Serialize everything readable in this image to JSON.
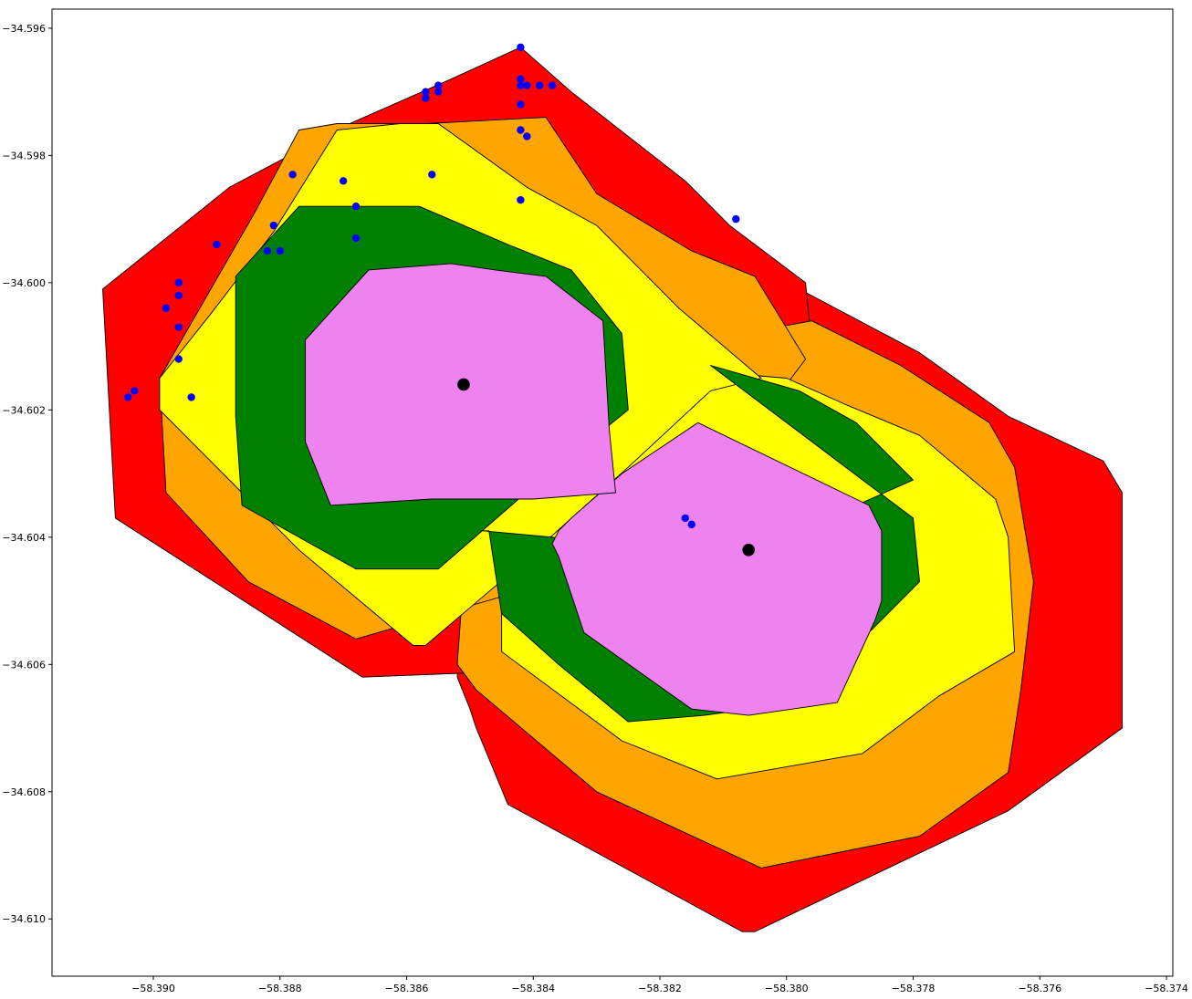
{
  "chart_data": {
    "type": "map",
    "title": "",
    "xlabel": "",
    "ylabel": "",
    "xlim": [
      -58.3916,
      -58.3739
    ],
    "ylim": [
      -34.6109,
      -34.5957
    ],
    "grid": false,
    "legend": null,
    "x_ticks": [
      {
        "value": -58.39,
        "label": "−58.390"
      },
      {
        "value": -58.388,
        "label": "−58.388"
      },
      {
        "value": -58.386,
        "label": "−58.386"
      },
      {
        "value": -58.384,
        "label": "−58.384"
      },
      {
        "value": -58.382,
        "label": "−58.382"
      },
      {
        "value": -58.38,
        "label": "−58.380"
      },
      {
        "value": -58.378,
        "label": "−58.378"
      },
      {
        "value": -58.376,
        "label": "−58.376"
      },
      {
        "value": -58.374,
        "label": "−58.374"
      }
    ],
    "y_ticks": [
      {
        "value": -34.596,
        "label": "−34.596"
      },
      {
        "value": -34.598,
        "label": "−34.598"
      },
      {
        "value": -34.6,
        "label": "−34.600"
      },
      {
        "value": -34.602,
        "label": "−34.602"
      },
      {
        "value": -34.604,
        "label": "−34.604"
      },
      {
        "value": -34.606,
        "label": "−34.606"
      },
      {
        "value": -34.608,
        "label": "−34.608"
      },
      {
        "value": -34.61,
        "label": "−34.610"
      }
    ],
    "colors": {
      "red": "#ff0000",
      "orange": "#ffa500",
      "yellow": "#ffff00",
      "green": "#008000",
      "violet": "#ee82ee",
      "points": "#0000ff",
      "centers": "#000000"
    },
    "polygons": [
      {
        "name": "red-zone-b",
        "color": "red",
        "coords": [
          [
            -58.3809,
            -34.5997
          ],
          [
            -58.3798,
            -34.6001
          ],
          [
            -58.3779,
            -34.6011
          ],
          [
            -58.3765,
            -34.6021
          ],
          [
            -58.375,
            -34.6028
          ],
          [
            -58.3747,
            -34.6033
          ],
          [
            -58.3747,
            -34.607
          ],
          [
            -58.3765,
            -34.6083
          ],
          [
            -58.3805,
            -34.6102
          ],
          [
            -58.3807,
            -34.6102
          ],
          [
            -58.3844,
            -34.6082
          ],
          [
            -58.3849,
            -34.607
          ],
          [
            -58.385,
            -34.6067
          ],
          [
            -58.3852,
            -34.6062
          ],
          [
            -58.3851,
            -34.6042
          ],
          [
            -58.384,
            -34.6014
          ],
          [
            -58.382,
            -34.6001
          ]
        ]
      },
      {
        "name": "red-zone-a",
        "color": "red",
        "coords": [
          [
            -58.3842,
            -34.5963
          ],
          [
            -58.3853,
            -34.5968
          ],
          [
            -58.3869,
            -34.5975
          ],
          [
            -58.3888,
            -34.5985
          ],
          [
            -58.3908,
            -34.6001
          ],
          [
            -58.3906,
            -34.6037
          ],
          [
            -58.3867,
            -34.6062
          ],
          [
            -58.3842,
            -34.6061
          ],
          [
            -58.3829,
            -34.6057
          ],
          [
            -58.38,
            -34.6014
          ],
          [
            -58.3796,
            -34.601
          ],
          [
            -58.3797,
            -34.6
          ],
          [
            -58.3809,
            -34.5991
          ],
          [
            -58.3816,
            -34.5984
          ],
          [
            -58.3834,
            -34.597
          ]
        ]
      },
      {
        "name": "orange-zone-b",
        "color": "orange",
        "coords": [
          [
            -58.3796,
            -34.6006
          ],
          [
            -58.3782,
            -34.6013
          ],
          [
            -58.3768,
            -34.6022
          ],
          [
            -58.3764,
            -34.6029
          ],
          [
            -58.3761,
            -34.6047
          ],
          [
            -58.3763,
            -34.6064
          ],
          [
            -58.3765,
            -34.6077
          ],
          [
            -58.3779,
            -34.6087
          ],
          [
            -58.3804,
            -34.6092
          ],
          [
            -58.383,
            -34.608
          ],
          [
            -58.3849,
            -34.6064
          ],
          [
            -58.3852,
            -34.606
          ],
          [
            -58.3851,
            -34.6046
          ],
          [
            -58.3838,
            -34.6026
          ],
          [
            -58.3818,
            -34.601
          ]
        ]
      },
      {
        "name": "orange-zone-a",
        "color": "orange",
        "coords": [
          [
            -58.3838,
            -34.5974
          ],
          [
            -58.383,
            -34.5986
          ],
          [
            -58.3815,
            -34.5995
          ],
          [
            -58.3805,
            -34.5999
          ],
          [
            -58.3797,
            -34.6012
          ],
          [
            -58.38,
            -34.6016
          ],
          [
            -58.383,
            -34.6045
          ],
          [
            -58.3868,
            -34.6056
          ],
          [
            -58.3885,
            -34.6047
          ],
          [
            -58.3898,
            -34.6033
          ],
          [
            -58.3899,
            -34.6015
          ],
          [
            -58.3884,
            -34.5989
          ],
          [
            -58.3877,
            -34.5976
          ],
          [
            -58.3871,
            -34.5975
          ],
          [
            -58.3857,
            -34.5975
          ]
        ]
      },
      {
        "name": "yellow-zone-b",
        "color": "yellow",
        "coords": [
          [
            -58.3791,
            -34.6019
          ],
          [
            -58.3779,
            -34.6024
          ],
          [
            -58.3773,
            -34.6029
          ],
          [
            -58.3767,
            -34.6034
          ],
          [
            -58.3765,
            -34.604
          ],
          [
            -58.3764,
            -34.6058
          ],
          [
            -58.3776,
            -34.6065
          ],
          [
            -58.3788,
            -34.6074
          ],
          [
            -58.3811,
            -34.6078
          ],
          [
            -58.3826,
            -34.6072
          ],
          [
            -58.3845,
            -34.6058
          ],
          [
            -58.3845,
            -34.6045
          ],
          [
            -58.3832,
            -34.6024
          ],
          [
            -58.3812,
            -34.6014
          ],
          [
            -58.38,
            -34.6015
          ]
        ]
      },
      {
        "name": "yellow-zone-a",
        "color": "yellow",
        "coords": [
          [
            -58.3855,
            -34.5975
          ],
          [
            -58.3841,
            -34.5985
          ],
          [
            -58.383,
            -34.5991
          ],
          [
            -58.3817,
            -34.6004
          ],
          [
            -58.3804,
            -34.6015
          ],
          [
            -58.3812,
            -34.6017
          ],
          [
            -58.3825,
            -34.6029
          ],
          [
            -58.3844,
            -34.6046
          ],
          [
            -58.3857,
            -34.6057
          ],
          [
            -58.3859,
            -34.6057
          ],
          [
            -58.3877,
            -34.6042
          ],
          [
            -58.3899,
            -34.602
          ],
          [
            -58.3899,
            -34.6015
          ],
          [
            -58.3891,
            -34.6005
          ],
          [
            -58.3881,
            -34.5992
          ],
          [
            -58.3871,
            -34.5976
          ],
          [
            -58.3861,
            -34.5975
          ]
        ]
      },
      {
        "name": "green-zone-b",
        "color": "green",
        "coords": [
          [
            -58.3812,
            -34.6013
          ],
          [
            -58.3798,
            -34.6017
          ],
          [
            -58.3789,
            -34.6022
          ],
          [
            -58.378,
            -34.6031
          ],
          [
            -58.3789,
            -34.6035
          ],
          [
            -58.3816,
            -34.6043
          ],
          [
            -58.3837,
            -34.604
          ],
          [
            -58.3848,
            -34.6039
          ],
          [
            -58.3847,
            -34.6039
          ],
          [
            -58.3845,
            -34.6052
          ],
          [
            -58.3836,
            -34.606
          ],
          [
            -58.3825,
            -34.6069
          ],
          [
            -58.3813,
            -34.6068
          ],
          [
            -58.3798,
            -34.6066
          ],
          [
            -58.3779,
            -34.6047
          ],
          [
            -58.378,
            -34.6037
          ]
        ]
      },
      {
        "name": "green-zone-a",
        "color": "green",
        "coords": [
          [
            -58.3858,
            -34.5988
          ],
          [
            -58.3844,
            -34.5994
          ],
          [
            -58.3834,
            -34.5998
          ],
          [
            -58.3826,
            -34.6008
          ],
          [
            -58.3825,
            -34.602
          ],
          [
            -58.384,
            -34.6032
          ],
          [
            -58.3855,
            -34.6045
          ],
          [
            -58.3868,
            -34.6045
          ],
          [
            -58.3886,
            -34.6035
          ],
          [
            -58.3887,
            -34.6021
          ],
          [
            -58.3887,
            -34.5999
          ],
          [
            -58.3877,
            -34.5988
          ],
          [
            -58.3865,
            -34.5988
          ]
        ]
      },
      {
        "name": "violet-zone-b",
        "color": "violet",
        "coords": [
          [
            -58.3814,
            -34.6022
          ],
          [
            -58.3787,
            -34.6035
          ],
          [
            -58.3785,
            -34.6039
          ],
          [
            -58.3785,
            -34.605
          ],
          [
            -58.3786,
            -34.6053
          ],
          [
            -58.3792,
            -34.6066
          ],
          [
            -58.3806,
            -34.6068
          ],
          [
            -58.3815,
            -34.6067
          ],
          [
            -58.3832,
            -34.6055
          ],
          [
            -58.3836,
            -34.6043
          ],
          [
            -58.3837,
            -34.6041
          ],
          [
            -58.3836,
            -34.6039
          ],
          [
            -58.3834,
            -34.6037
          ],
          [
            -58.3826,
            -34.603
          ]
        ]
      },
      {
        "name": "violet-zone-a",
        "color": "violet",
        "coords": [
          [
            -58.3853,
            -34.5997
          ],
          [
            -58.3846,
            -34.5998
          ],
          [
            -58.3838,
            -34.5999
          ],
          [
            -58.3829,
            -34.6006
          ],
          [
            -58.3828,
            -34.6023
          ],
          [
            -58.3827,
            -34.6033
          ],
          [
            -58.384,
            -34.6034
          ],
          [
            -58.3856,
            -34.6034
          ],
          [
            -58.3872,
            -34.6035
          ],
          [
            -58.3876,
            -34.6025
          ],
          [
            -58.3876,
            -34.6009
          ],
          [
            -58.3866,
            -34.5998
          ]
        ]
      }
    ],
    "points": [
      [
        -58.3842,
        -34.5963
      ],
      [
        -58.3842,
        -34.5968
      ],
      [
        -58.3842,
        -34.5969
      ],
      [
        -58.3841,
        -34.5969
      ],
      [
        -58.3839,
        -34.5969
      ],
      [
        -58.3837,
        -34.5969
      ],
      [
        -58.3842,
        -34.5972
      ],
      [
        -58.3842,
        -34.5976
      ],
      [
        -58.3841,
        -34.5977
      ],
      [
        -58.3857,
        -34.597
      ],
      [
        -58.3857,
        -34.5971
      ],
      [
        -58.3855,
        -34.5969
      ],
      [
        -58.3855,
        -34.597
      ],
      [
        -58.3856,
        -34.5983
      ],
      [
        -58.3842,
        -34.5987
      ],
      [
        -58.387,
        -34.5984
      ],
      [
        -58.3878,
        -34.5983
      ],
      [
        -58.3868,
        -34.5988
      ],
      [
        -58.3868,
        -34.5993
      ],
      [
        -58.3881,
        -34.5991
      ],
      [
        -58.3882,
        -34.5995
      ],
      [
        -58.388,
        -34.5995
      ],
      [
        -58.389,
        -34.5994
      ],
      [
        -58.3896,
        -34.6
      ],
      [
        -58.3896,
        -34.6002
      ],
      [
        -58.3898,
        -34.6004
      ],
      [
        -58.3896,
        -34.6007
      ],
      [
        -58.3896,
        -34.6012
      ],
      [
        -58.3903,
        -34.6017
      ],
      [
        -58.3904,
        -34.6018
      ],
      [
        -58.3894,
        -34.6018
      ],
      [
        -58.3808,
        -34.599
      ],
      [
        -58.3816,
        -34.6037
      ],
      [
        -58.3815,
        -34.6038
      ]
    ],
    "centers": [
      [
        -58.3851,
        -34.6016
      ],
      [
        -58.3806,
        -34.6042
      ]
    ]
  }
}
